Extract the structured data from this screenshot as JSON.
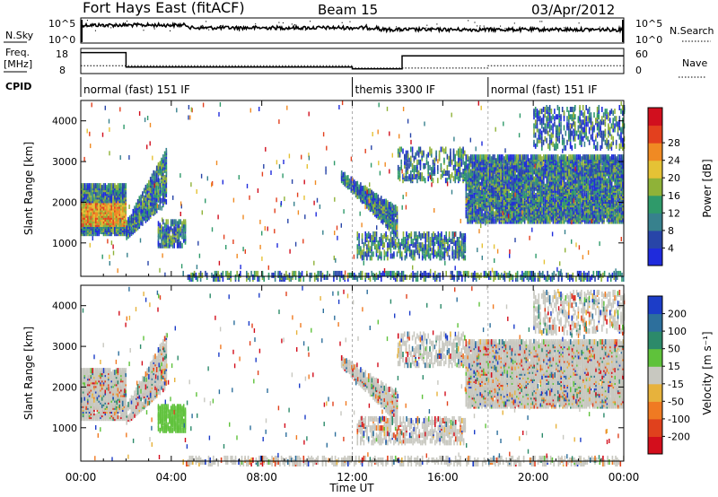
{
  "header": {
    "station": "Fort Hays East (fitACF)",
    "beam": "Beam 15",
    "date": "03/Apr/2012"
  },
  "noise_panel": {
    "left_label": "N.Sky",
    "right_label": "N.Search",
    "left_ticks": [
      "10^5",
      "10^0"
    ],
    "right_ticks": [
      "10^5",
      "10^0"
    ]
  },
  "freq_panel": {
    "left_label_1": "Freq.",
    "left_label_2": "[MHz]",
    "left_ticks": [
      "18",
      "8"
    ],
    "right_label": "Nave",
    "right_ticks": [
      "60",
      "0"
    ]
  },
  "cpid": {
    "label": "CPID",
    "segments": [
      {
        "text": "normal (fast) 151 IF",
        "start_h": 0,
        "end_h": 12
      },
      {
        "text": "themis 3300 IF",
        "start_h": 12,
        "end_h": 18
      },
      {
        "text": "normal (fast) 151 IF",
        "start_h": 18,
        "end_h": 24
      }
    ]
  },
  "chart_data": [
    {
      "type": "heatmap",
      "name": "power",
      "ylabel": "Slant Range [km]",
      "xlabel": "Time UT",
      "xlim": [
        0,
        24
      ],
      "ylim": [
        180,
        4500
      ],
      "yticks": [
        1000,
        2000,
        3000,
        4000
      ],
      "xticks": [
        "00:00",
        "04:00",
        "08:00",
        "12:00",
        "16:00",
        "20:00",
        "00:00"
      ],
      "colorbar": {
        "label": "Power [dB]",
        "ticks": [
          "4",
          "8",
          "12",
          "16",
          "20",
          "24",
          "28"
        ],
        "colors": [
          "#1f2bdc",
          "#2845a8",
          "#37818d",
          "#2f9a6a",
          "#8fb238",
          "#e5c235",
          "#f08a23",
          "#e3401e",
          "#d10f1e"
        ]
      }
    },
    {
      "type": "heatmap",
      "name": "velocity",
      "ylabel": "Slant Range [km]",
      "xlabel": "Time UT",
      "xlim": [
        0,
        24
      ],
      "ylim": [
        180,
        4500
      ],
      "yticks": [
        1000,
        2000,
        3000,
        4000
      ],
      "xticks": [
        "00:00",
        "04:00",
        "08:00",
        "12:00",
        "16:00",
        "20:00",
        "00:00"
      ],
      "colorbar": {
        "label": "Velocity [m s⁻¹]",
        "ticks": [
          "200",
          "100",
          "50",
          "15",
          "-15",
          "-50",
          "-100",
          "-200"
        ],
        "colors": [
          "#1c3dc8",
          "#2d6f9c",
          "#2c8a6a",
          "#5fc23b",
          "#c8c8c0",
          "#e7b23c",
          "#f07a22",
          "#e0411d",
          "#d30e1c"
        ]
      }
    }
  ],
  "axis": {
    "xlabel": "Time UT"
  }
}
